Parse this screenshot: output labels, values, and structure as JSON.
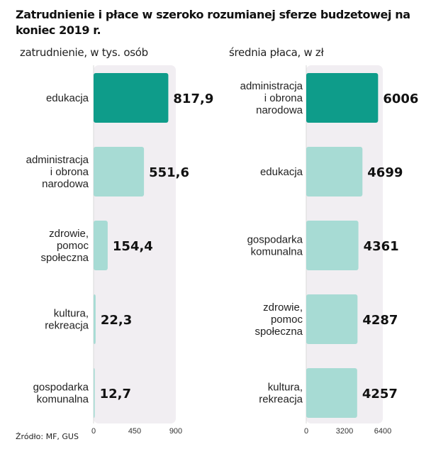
{
  "title": "Zatrudnienie i płace w szeroko rozumianej sferze budzetowej na koniec 2019 r.",
  "source": "Źródło: MF, GUS",
  "colors": {
    "highlight": "#0e9c8a",
    "bar": "#a7dbd4",
    "track": "#f1eef2",
    "baseline": "#d9d9d9"
  },
  "chart_data": [
    {
      "type": "bar",
      "orientation": "horizontal",
      "subtitle": "zatrudnienie, w tys. osób",
      "categories": [
        [
          "edukacja"
        ],
        [
          "administracja",
          "i obrona",
          "narodowa"
        ],
        [
          "zdrowie,",
          "pomoc",
          "społeczna"
        ],
        [
          "kultura,",
          "rekreacja"
        ],
        [
          "gospodarka",
          "komunalna"
        ]
      ],
      "values": [
        817.9,
        551.6,
        154.4,
        22.3,
        12.7
      ],
      "value_labels": [
        "817,9",
        "551,6",
        "154,4",
        "22,3",
        "12,7"
      ],
      "highlight_index": 0,
      "xlim": [
        0,
        900
      ],
      "ticks": [
        0,
        450,
        900
      ],
      "tick_labels": [
        "0",
        "450",
        "900"
      ]
    },
    {
      "type": "bar",
      "orientation": "horizontal",
      "subtitle": "średnia płaca, w zł",
      "categories": [
        [
          "administracja",
          "i obrona",
          "narodowa"
        ],
        [
          "edukacja"
        ],
        [
          "gospodarka",
          "komunalna"
        ],
        [
          "zdrowie,",
          "pomoc",
          "społeczna"
        ],
        [
          "kultura,",
          "rekreacja"
        ]
      ],
      "values": [
        6006,
        4699,
        4361,
        4287,
        4257
      ],
      "value_labels": [
        "6006",
        "4699",
        "4361",
        "4287",
        "4257"
      ],
      "highlight_index": 0,
      "xlim": [
        0,
        6400
      ],
      "ticks": [
        0,
        3200,
        6400
      ],
      "tick_labels": [
        "0",
        "3200",
        "6400"
      ]
    }
  ]
}
